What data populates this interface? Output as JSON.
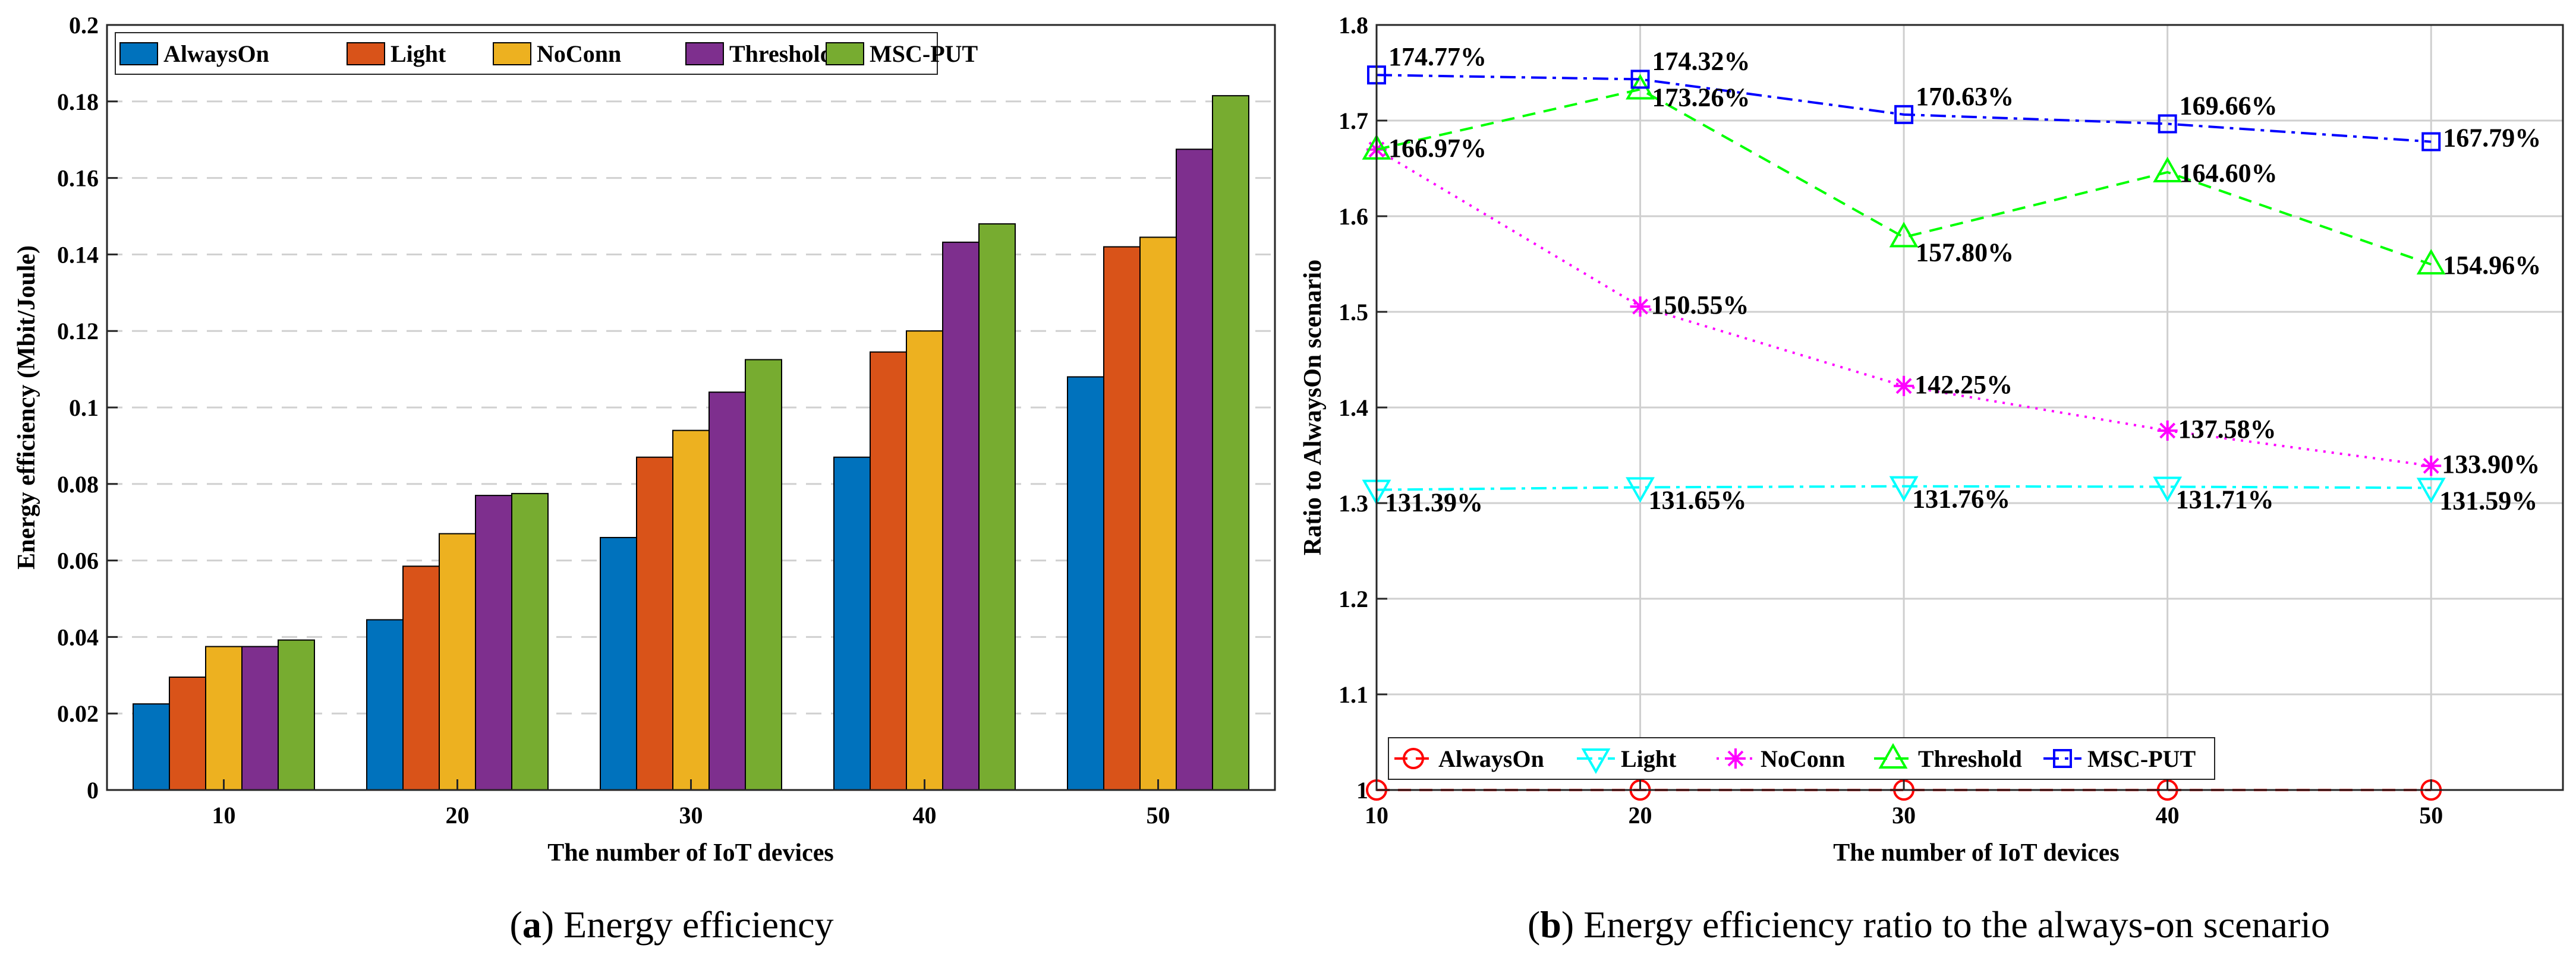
{
  "chart_data": [
    {
      "type": "bar",
      "title": "",
      "caption_letter": "a",
      "caption_text": " Energy efficiency",
      "xlabel": "The number of IoT devices",
      "ylabel": "Energy efficiency (Mbit/Joule)",
      "categories": [
        "10",
        "20",
        "30",
        "40",
        "50"
      ],
      "ylim": [
        0,
        0.2
      ],
      "yticks": [
        "0",
        "0.02",
        "0.04",
        "0.06",
        "0.08",
        "0.1",
        "0.12",
        "0.14",
        "0.16",
        "0.18",
        "0.2"
      ],
      "grid": "horizontal-dashed",
      "legend_position": "top-left",
      "series": [
        {
          "name": "AlwaysOn",
          "color": "#0072BD",
          "values": [
            0.0225,
            0.0445,
            0.066,
            0.087,
            0.108
          ]
        },
        {
          "name": "Light",
          "color": "#D95319",
          "values": [
            0.0295,
            0.0585,
            0.087,
            0.1145,
            0.142
          ]
        },
        {
          "name": "NoConn",
          "color": "#EDB120",
          "values": [
            0.0375,
            0.067,
            0.094,
            0.12,
            0.1445
          ]
        },
        {
          "name": "Threshold",
          "color": "#7E2F8E",
          "values": [
            0.0375,
            0.077,
            0.104,
            0.1432,
            0.1675
          ]
        },
        {
          "name": "MSC-PUT",
          "color": "#77AC30",
          "values": [
            0.0392,
            0.0775,
            0.1125,
            0.148,
            0.1815
          ]
        }
      ]
    },
    {
      "type": "line",
      "title": "",
      "caption_letter": "b",
      "caption_text": " Energy efficiency ratio to the always-on scenario",
      "xlabel": "The number of IoT devices",
      "ylabel": "Ratio to AlwaysOn scenario",
      "x": [
        10,
        20,
        30,
        40,
        50
      ],
      "xticks": [
        "10",
        "20",
        "30",
        "40",
        "50"
      ],
      "xlim": [
        10,
        55
      ],
      "ylim": [
        1,
        1.8
      ],
      "yticks": [
        "1",
        "1.1",
        "1.2",
        "1.3",
        "1.4",
        "1.5",
        "1.6",
        "1.7",
        "1.8"
      ],
      "grid": "on",
      "legend_position": "bottom-left",
      "series": [
        {
          "name": "AlwaysOn",
          "color": "#FF0000",
          "marker": "circle",
          "dash": "dashed",
          "values": [
            1.0,
            1.0,
            1.0,
            1.0,
            1.0
          ],
          "labels": []
        },
        {
          "name": "Light",
          "color": "#00FFFF",
          "marker": "triangle-down",
          "dash": "dashdot",
          "values": [
            1.3139,
            1.3165,
            1.3176,
            1.3171,
            1.3159
          ],
          "labels": [
            "131.39%",
            "131.65%",
            "131.76%",
            "131.71%",
            "131.59%"
          ]
        },
        {
          "name": "NoConn",
          "color": "#FF00FF",
          "marker": "asterisk",
          "dash": "dotted",
          "values": [
            1.6697,
            1.5055,
            1.4225,
            1.3758,
            1.339
          ],
          "labels": [
            "166.97%",
            "150.55%",
            "142.25%",
            "137.58%",
            "133.90%"
          ]
        },
        {
          "name": "Threshold",
          "color": "#00FF00",
          "marker": "triangle-up",
          "dash": "dashed",
          "values": [
            1.6697,
            1.7326,
            1.578,
            1.646,
            1.5496
          ],
          "labels": [
            "",
            "173.26%",
            "157.80%",
            "164.60%",
            "154.96%"
          ]
        },
        {
          "name": "MSC-PUT",
          "color": "#0000FF",
          "marker": "square",
          "dash": "dashdot",
          "values": [
            1.7477,
            1.7432,
            1.7063,
            1.6966,
            1.6779
          ],
          "labels": [
            "174.77%",
            "174.32%",
            "170.63%",
            "169.66%",
            "167.79%"
          ]
        }
      ]
    }
  ]
}
